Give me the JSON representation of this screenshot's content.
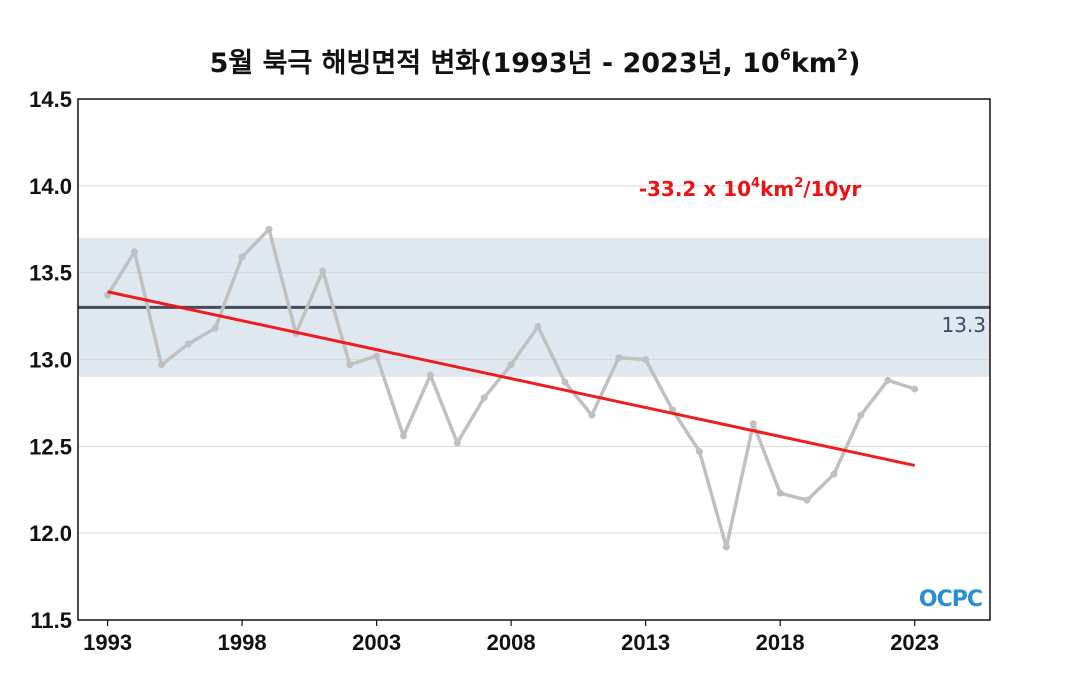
{
  "chart_data": {
    "type": "line",
    "title": {
      "main": "5월 북극 해빙면적 변화(1993년 - 2023년, 10",
      "sup1": "6",
      "mid": "km",
      "sup2": "2",
      "end": ")"
    },
    "xlabel": "",
    "ylabel": "",
    "xlim": [
      1991.9,
      2025.8
    ],
    "ylim": [
      11.5,
      14.5
    ],
    "x_ticks": [
      "1993",
      "1998",
      "2003",
      "2008",
      "2013",
      "2018",
      "2023"
    ],
    "y_ticks": [
      "14.5",
      "14.0",
      "13.5",
      "13.0",
      "12.5",
      "12.0",
      "11.5"
    ],
    "grid": true,
    "series": [
      {
        "color": "#c0c0c0",
        "x": [
          1993,
          1994,
          1995,
          1996,
          1997,
          1998,
          1999,
          2000,
          2001,
          2002,
          2003,
          2004,
          2005,
          2006,
          2007,
          2008,
          2009,
          2010,
          2011,
          2012,
          2013,
          2014,
          2015,
          2016,
          2017,
          2018,
          2019,
          2020,
          2021,
          2022,
          2023
        ],
        "values": [
          13.37,
          13.62,
          12.97,
          13.09,
          13.18,
          13.59,
          13.75,
          13.15,
          13.51,
          12.97,
          13.02,
          12.56,
          12.91,
          12.52,
          12.78,
          12.97,
          13.19,
          12.87,
          12.68,
          13.01,
          13.0,
          12.71,
          12.47,
          11.92,
          12.63,
          12.23,
          12.19,
          12.34,
          12.68,
          12.88,
          12.83
        ]
      }
    ],
    "trend": {
      "color": "#ee1111",
      "x": [
        1993,
        2023
      ],
      "y": [
        13.39,
        12.39
      ],
      "label_pre": "-33.2 x 10",
      "label_sup1": "4",
      "label_mid": "km",
      "label_sup2": "2",
      "label_post": "/10yr"
    },
    "reference": {
      "value": 13.3,
      "label": "13.3",
      "band": [
        12.9,
        13.7
      ],
      "line_color": "#444c5c",
      "band_color": "#dfe8f1"
    },
    "logo": "OCPC"
  }
}
